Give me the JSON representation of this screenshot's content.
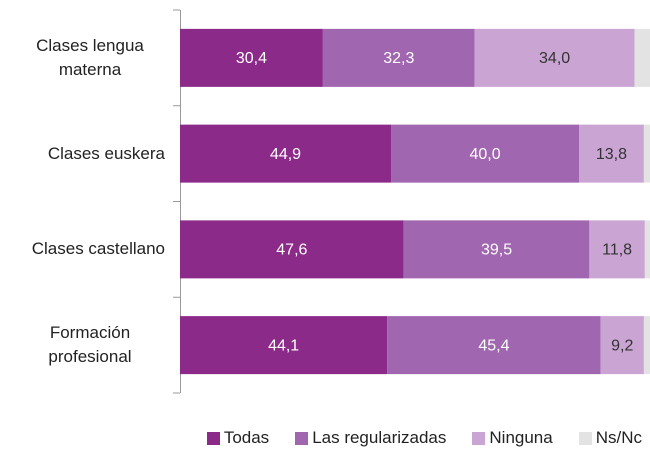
{
  "chart_data": {
    "type": "stacked-barh",
    "categories": [
      "Clases lengua materna",
      "Clases euskera",
      "Clases castellano",
      "Formación profesional"
    ],
    "xlim": [
      0,
      100
    ],
    "series": [
      {
        "name": "Todas",
        "color": "#8c2a8a",
        "label_color": "#ffffff",
        "values": [
          30.4,
          44.9,
          47.6,
          44.1
        ],
        "value_labels": [
          "30,4",
          "44,9",
          "47,6",
          "44,1"
        ]
      },
      {
        "name": "Las regularizadas",
        "color": "#a066af",
        "label_color": "#ffffff",
        "values": [
          32.3,
          40.0,
          39.5,
          45.4
        ],
        "value_labels": [
          "32,3",
          "40,0",
          "39,5",
          "45,4"
        ]
      },
      {
        "name": "Ninguna",
        "color": "#caa4d3",
        "label_color": "#333333",
        "values": [
          34.0,
          13.8,
          11.8,
          9.2
        ],
        "value_labels": [
          "34,0",
          "13,8",
          "11,8",
          "9,2"
        ]
      },
      {
        "name": "Ns/Nc",
        "color": "#e3e3e3",
        "values": [
          3.3,
          1.3,
          1.1,
          1.3
        ]
      }
    ]
  }
}
